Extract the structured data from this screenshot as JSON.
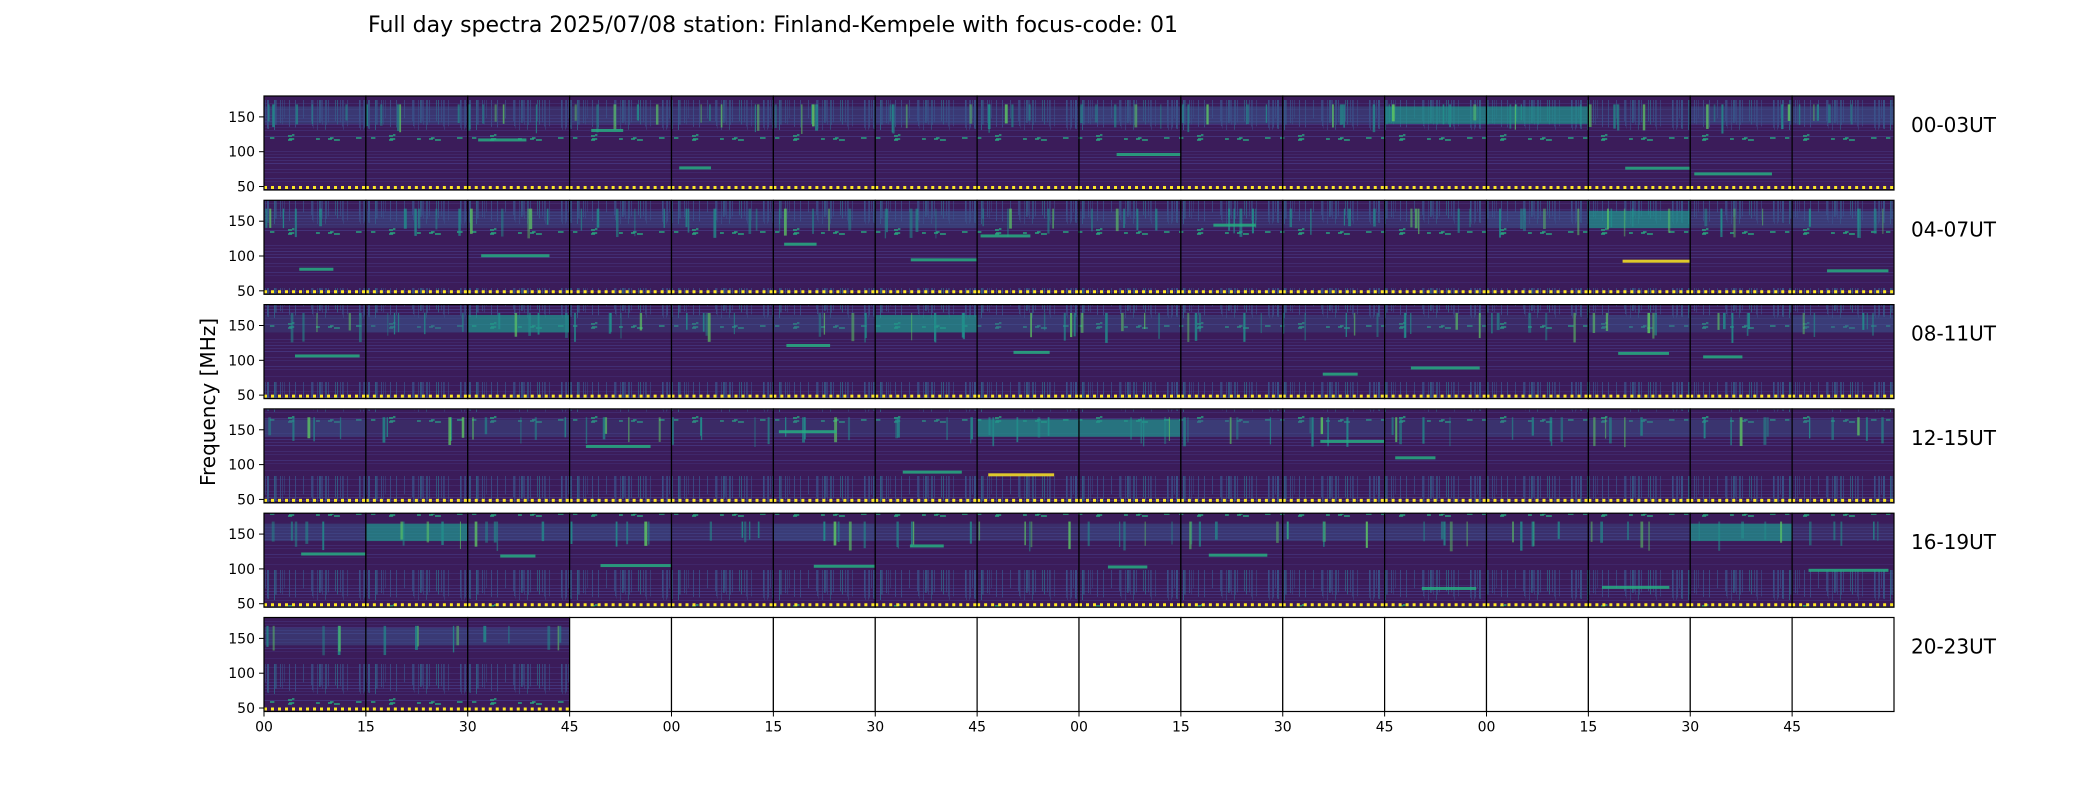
{
  "chart_data": {
    "type": "heatmap",
    "title": "Full day spectra 2025/07/08 station: Finland-Kempele with focus-code: 01",
    "ylabel": "Frequency [MHz]",
    "xlabel": "",
    "ylim": [
      45,
      180
    ],
    "y_ticks": [
      "150",
      "100",
      "50"
    ],
    "y_tick_values": [
      150,
      100,
      50
    ],
    "x_tick_labels": [
      "00",
      "15",
      "30",
      "45",
      "00",
      "15",
      "30",
      "45",
      "00",
      "15",
      "30",
      "45",
      "00",
      "15",
      "30",
      "45"
    ],
    "rows": [
      {
        "label": "00-03UT",
        "filled_panels": 16,
        "bright_panels": [
          11,
          12
        ]
      },
      {
        "label": "04-07UT",
        "filled_panels": 16,
        "bright_panels": [
          13
        ]
      },
      {
        "label": "08-11UT",
        "filled_panels": 16,
        "bright_panels": [
          2,
          6
        ]
      },
      {
        "label": "12-15UT",
        "filled_panels": 16,
        "bright_panels": [
          7,
          8
        ]
      },
      {
        "label": "16-19UT",
        "filled_panels": 16,
        "bright_panels": [
          1,
          14
        ]
      },
      {
        "label": "20-23UT",
        "filled_panels": 3,
        "bright_panels": []
      }
    ],
    "panels_per_row": 16,
    "colormap": [
      "#3b1c5a",
      "#453781",
      "#3a548c",
      "#2e6f8e",
      "#21908c",
      "#27ad81",
      "#5ec962",
      "#fde725"
    ],
    "grid": false
  }
}
